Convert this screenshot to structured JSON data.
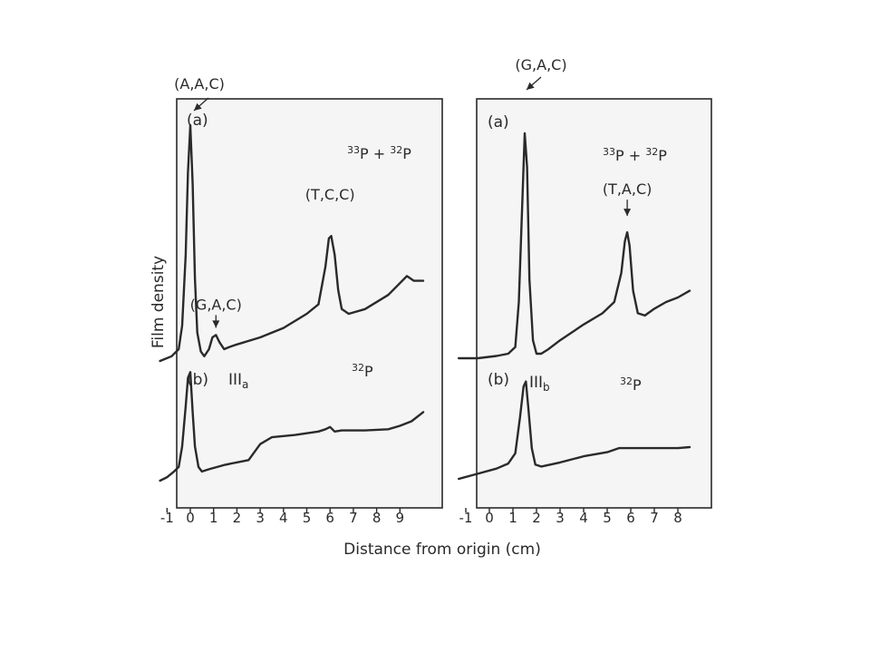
{
  "figure": {
    "ylabel": "Film density",
    "xlabel": "Distance from origin (cm)",
    "ink_color": "#2a2a2a",
    "background_color": "#f5f5f5"
  },
  "chart_data": [
    {
      "type": "line",
      "xlim": [
        -1.5,
        10.2
      ],
      "xticks": [
        "-1",
        "0",
        "1",
        "2",
        "3",
        "4",
        "5",
        "6",
        "7",
        "8",
        "9"
      ],
      "traces": [
        {
          "panel_label": "(a)",
          "isotope_label": "33P + 32P",
          "x": [
            -1.3,
            -0.8,
            -0.5,
            -0.35,
            -0.2,
            -0.1,
            0.0,
            0.1,
            0.2,
            0.3,
            0.45,
            0.6,
            0.8,
            0.95,
            1.1,
            1.25,
            1.45,
            1.7,
            2.0,
            3.0,
            4.0,
            5.0,
            5.5,
            5.8,
            5.95,
            6.05,
            6.2,
            6.35,
            6.5,
            6.8,
            7.5,
            8.5,
            9.0,
            9.3,
            9.6,
            10.0
          ],
          "y": [
            0.0,
            0.02,
            0.05,
            0.15,
            0.45,
            0.8,
            1.0,
            0.75,
            0.35,
            0.12,
            0.04,
            0.02,
            0.05,
            0.1,
            0.11,
            0.08,
            0.05,
            0.06,
            0.07,
            0.1,
            0.14,
            0.2,
            0.24,
            0.4,
            0.52,
            0.53,
            0.45,
            0.3,
            0.22,
            0.2,
            0.22,
            0.28,
            0.33,
            0.36,
            0.34,
            0.34
          ],
          "annotations": [
            {
              "text": "(A,A,C)",
              "x": 0.0
            },
            {
              "text": "(G,A,C)",
              "x": 1.1
            },
            {
              "text": "(T,C,C)",
              "x": 6.0
            }
          ]
        },
        {
          "panel_label": "(b)",
          "isotope_label": "32P",
          "fraction_label": "IIIa",
          "x": [
            -1.3,
            -1.0,
            -0.7,
            -0.5,
            -0.35,
            -0.2,
            -0.1,
            0.0,
            0.1,
            0.2,
            0.35,
            0.5,
            0.8,
            1.5,
            2.5,
            3.0,
            3.5,
            4.5,
            5.5,
            5.8,
            6.0,
            6.2,
            6.5,
            7.5,
            8.5,
            9.0,
            9.5,
            10.0
          ],
          "y": [
            0.0,
            0.03,
            0.08,
            0.12,
            0.3,
            0.65,
            0.9,
            0.95,
            0.6,
            0.3,
            0.12,
            0.08,
            0.1,
            0.14,
            0.18,
            0.32,
            0.38,
            0.4,
            0.43,
            0.45,
            0.47,
            0.43,
            0.44,
            0.44,
            0.45,
            0.48,
            0.52,
            0.6
          ],
          "annotations": []
        }
      ]
    },
    {
      "type": "line",
      "xlim": [
        -1.5,
        8.8
      ],
      "xticks": [
        "-1",
        "0",
        "1",
        "2",
        "3",
        "4",
        "5",
        "6",
        "7",
        "8"
      ],
      "traces": [
        {
          "panel_label": "(a)",
          "isotope_label": "33P + 32P",
          "x": [
            -1.3,
            -0.5,
            0.3,
            0.8,
            1.1,
            1.25,
            1.4,
            1.5,
            1.6,
            1.7,
            1.85,
            2.0,
            2.2,
            2.5,
            3.0,
            4.0,
            4.8,
            5.3,
            5.6,
            5.75,
            5.85,
            5.95,
            6.1,
            6.3,
            6.6,
            7.0,
            7.5,
            8.0,
            8.5
          ],
          "y": [
            0.0,
            0.0,
            0.01,
            0.02,
            0.05,
            0.25,
            0.7,
            1.0,
            0.85,
            0.35,
            0.08,
            0.02,
            0.02,
            0.04,
            0.08,
            0.15,
            0.2,
            0.25,
            0.38,
            0.52,
            0.56,
            0.5,
            0.3,
            0.2,
            0.19,
            0.22,
            0.25,
            0.27,
            0.3
          ],
          "annotations": [
            {
              "text": "(G,A,C)",
              "x": 1.5
            },
            {
              "text": "(T,A,C)",
              "x": 5.85
            }
          ]
        },
        {
          "panel_label": "(b)",
          "isotope_label": "32P",
          "fraction_label": "IIIb",
          "x": [
            -1.3,
            -0.5,
            0.3,
            0.8,
            1.1,
            1.3,
            1.45,
            1.55,
            1.65,
            1.8,
            1.95,
            2.2,
            2.6,
            3.0,
            4.0,
            5.0,
            5.5,
            6.0,
            7.0,
            8.0,
            8.5
          ],
          "y": [
            0.0,
            0.05,
            0.1,
            0.15,
            0.25,
            0.6,
            0.9,
            0.95,
            0.7,
            0.3,
            0.14,
            0.12,
            0.14,
            0.16,
            0.22,
            0.26,
            0.3,
            0.3,
            0.3,
            0.3,
            0.31
          ]
        }
      ]
    }
  ]
}
